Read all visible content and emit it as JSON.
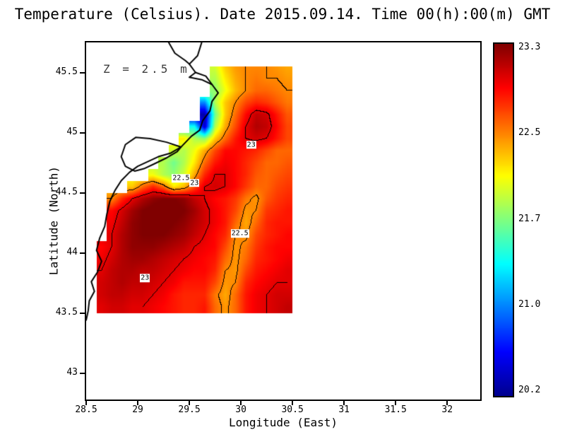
{
  "chart_data": {
    "type": "heatmap",
    "title": "Temperature (Celsius). Date 2015.09.14. Time 00(h):00(m) GMT",
    "annotation": "Z = 2.5 m",
    "xlabel": "Longitude (East)",
    "ylabel": "Latitude (North)",
    "x_ticks": [
      28.5,
      29,
      29.5,
      30,
      30.5,
      31,
      31.5,
      32
    ],
    "x_tick_labels": [
      "28.5",
      "29",
      "29.5",
      "30",
      "30.5",
      "31",
      "31.5",
      "32"
    ],
    "y_ticks": [
      43,
      43.5,
      44,
      44.5,
      45,
      45.5
    ],
    "y_tick_labels": [
      "43",
      "43.5",
      "44",
      "44.5",
      "45",
      "45.5"
    ],
    "xlim": [
      28.5,
      32.32
    ],
    "ylim": [
      42.78,
      45.75
    ],
    "grid_on": false,
    "colorbar": {
      "min": 20.2,
      "max": 23.3,
      "tick_labels": [
        "23.3",
        "22.5",
        "21.7",
        "21.0",
        "20.2"
      ],
      "colormap": [
        [
          0.0,
          "#00008F"
        ],
        [
          0.125,
          "#0000FF"
        ],
        [
          0.375,
          "#00FFFF"
        ],
        [
          0.625,
          "#FFFF00"
        ],
        [
          0.875,
          "#FF0000"
        ],
        [
          1.0,
          "#800000"
        ]
      ]
    },
    "contour_levels": [
      22.5,
      23
    ],
    "contour_labels": [
      {
        "text": "23",
        "lon": 30.1,
        "lat": 44.9
      },
      {
        "text": "22.5",
        "lon": 29.42,
        "lat": 44.62
      },
      {
        "text": "23",
        "lon": 29.55,
        "lat": 44.58
      },
      {
        "text": "22.5",
        "lon": 29.99,
        "lat": 44.16
      },
      {
        "text": "23",
        "lon": 29.07,
        "lat": 43.79
      }
    ],
    "grid": {
      "lon_start": 28.55,
      "lat_start": 43.55,
      "dlon": 0.1,
      "dlat": 0.1,
      "lat_max": 45.55,
      "values": [
        [
          null,
          23.0,
          23.05,
          23.05,
          23.0,
          23.0,
          22.95,
          22.9,
          22.85,
          22.8,
          22.8,
          22.85,
          22.6,
          22.45,
          22.6,
          22.85,
          22.95,
          23.0,
          23.05,
          23.1
        ],
        [
          null,
          23.05,
          23.1,
          23.1,
          23.05,
          23.05,
          23.0,
          22.95,
          22.85,
          22.8,
          22.8,
          22.8,
          22.55,
          22.4,
          22.6,
          22.85,
          22.95,
          23.0,
          23.05,
          23.05
        ],
        [
          null,
          23.05,
          23.1,
          23.15,
          23.1,
          23.1,
          23.05,
          23.0,
          22.95,
          22.85,
          22.85,
          22.85,
          22.7,
          22.45,
          22.5,
          22.8,
          22.9,
          22.95,
          23.0,
          23.0
        ],
        [
          null,
          23.0,
          23.1,
          23.15,
          23.15,
          23.1,
          23.1,
          23.05,
          23.0,
          22.95,
          22.9,
          22.9,
          22.8,
          22.5,
          22.45,
          22.7,
          22.85,
          22.9,
          22.95,
          23.0
        ],
        [
          null,
          22.95,
          23.05,
          23.15,
          23.2,
          23.2,
          23.15,
          23.1,
          23.05,
          23.0,
          22.95,
          22.9,
          22.85,
          22.6,
          22.45,
          22.6,
          22.8,
          22.85,
          22.9,
          22.95
        ],
        [
          null,
          22.9,
          23.0,
          23.15,
          23.25,
          23.25,
          23.25,
          23.2,
          23.15,
          23.1,
          23.0,
          22.95,
          22.9,
          22.7,
          22.45,
          22.55,
          22.75,
          22.85,
          22.9,
          22.9
        ],
        [
          null,
          null,
          23.0,
          23.15,
          23.25,
          23.3,
          23.3,
          23.3,
          23.25,
          23.2,
          23.1,
          23.0,
          22.9,
          22.8,
          22.5,
          22.45,
          22.7,
          22.8,
          22.85,
          22.9
        ],
        [
          null,
          null,
          22.95,
          23.1,
          23.25,
          23.3,
          23.35,
          23.35,
          23.3,
          23.25,
          23.15,
          23.05,
          22.95,
          22.85,
          22.6,
          22.4,
          22.6,
          22.8,
          22.85,
          22.85
        ],
        [
          null,
          null,
          22.9,
          23.05,
          23.2,
          23.3,
          23.35,
          23.35,
          23.35,
          23.3,
          23.2,
          23.05,
          22.95,
          22.85,
          22.7,
          22.45,
          22.5,
          22.75,
          22.8,
          22.85
        ],
        [
          null,
          null,
          22.5,
          22.8,
          23.0,
          23.15,
          23.25,
          23.3,
          23.3,
          23.25,
          23.1,
          23.0,
          22.9,
          22.85,
          22.75,
          22.55,
          22.45,
          22.65,
          22.75,
          22.8
        ],
        [
          null,
          null,
          null,
          null,
          22.3,
          22.6,
          22.8,
          22.6,
          22.2,
          22.35,
          22.7,
          23.0,
          23.05,
          23.0,
          22.9,
          22.75,
          22.6,
          22.6,
          22.7,
          22.75
        ],
        [
          null,
          null,
          null,
          null,
          null,
          null,
          22.1,
          21.9,
          21.8,
          22.0,
          22.4,
          22.8,
          23.0,
          23.0,
          22.9,
          22.8,
          22.65,
          22.6,
          22.65,
          22.7
        ],
        [
          null,
          null,
          null,
          null,
          null,
          null,
          null,
          21.9,
          21.7,
          21.9,
          22.2,
          22.6,
          22.85,
          22.95,
          22.9,
          22.8,
          22.7,
          22.6,
          22.6,
          22.65
        ],
        [
          null,
          null,
          null,
          null,
          null,
          null,
          null,
          null,
          22.0,
          21.9,
          22.1,
          22.4,
          22.7,
          22.9,
          22.9,
          22.85,
          22.8,
          22.7,
          22.6,
          22.6
        ],
        [
          null,
          null,
          null,
          null,
          null,
          null,
          null,
          null,
          null,
          22.2,
          21.9,
          21.8,
          22.3,
          22.6,
          22.85,
          23.0,
          23.05,
          23.0,
          22.85,
          22.7
        ],
        [
          null,
          null,
          null,
          null,
          null,
          null,
          null,
          null,
          null,
          null,
          21.4,
          20.4,
          21.9,
          22.4,
          22.7,
          23.0,
          23.15,
          23.1,
          22.9,
          22.7
        ],
        [
          null,
          null,
          null,
          null,
          null,
          null,
          null,
          null,
          null,
          null,
          null,
          20.3,
          21.7,
          22.3,
          22.6,
          22.9,
          23.1,
          23.05,
          22.85,
          22.65
        ],
        [
          null,
          null,
          null,
          null,
          null,
          null,
          null,
          null,
          null,
          null,
          null,
          21.0,
          21.9,
          22.3,
          22.5,
          22.7,
          22.8,
          22.75,
          22.65,
          22.55
        ],
        [
          null,
          null,
          null,
          null,
          null,
          null,
          null,
          null,
          null,
          null,
          null,
          null,
          21.8,
          22.1,
          22.35,
          22.5,
          22.6,
          22.6,
          22.55,
          22.5
        ],
        [
          null,
          null,
          null,
          null,
          null,
          null,
          null,
          null,
          null,
          null,
          null,
          null,
          21.9,
          22.2,
          22.4,
          22.5,
          22.55,
          22.5,
          22.5,
          22.45
        ],
        [
          null,
          null,
          null,
          null,
          null,
          null,
          null,
          null,
          null,
          null,
          null,
          null,
          22.0,
          22.3,
          22.45,
          22.5,
          22.5,
          22.5,
          22.45,
          22.4
        ]
      ]
    },
    "coastline": [
      [
        [
          29.62,
          45.75
        ],
        [
          29.58,
          45.64
        ],
        [
          29.5,
          45.57
        ],
        [
          29.56,
          45.5
        ],
        [
          29.5,
          45.46
        ],
        [
          29.62,
          45.44
        ],
        [
          29.72,
          45.4
        ],
        [
          29.78,
          45.33
        ],
        [
          29.72,
          45.26
        ],
        [
          29.7,
          45.18
        ],
        [
          29.63,
          45.1
        ],
        [
          29.6,
          45.02
        ],
        [
          29.52,
          44.97
        ],
        [
          29.42,
          44.88
        ],
        [
          29.32,
          44.83
        ],
        [
          29.2,
          44.8
        ],
        [
          29.1,
          44.76
        ],
        [
          29.0,
          44.72
        ],
        [
          28.92,
          44.67
        ],
        [
          28.84,
          44.6
        ],
        [
          28.78,
          44.52
        ],
        [
          28.73,
          44.43
        ],
        [
          28.7,
          44.32
        ],
        [
          28.68,
          44.22
        ],
        [
          28.63,
          44.12
        ],
        [
          28.6,
          44.02
        ],
        [
          28.65,
          43.93
        ],
        [
          28.61,
          43.84
        ],
        [
          28.55,
          43.76
        ],
        [
          28.58,
          43.68
        ],
        [
          28.53,
          43.6
        ],
        [
          28.52,
          43.52
        ],
        [
          28.5,
          43.44
        ]
      ],
      [
        [
          29.42,
          44.88
        ],
        [
          29.28,
          44.92
        ],
        [
          29.12,
          44.95
        ],
        [
          28.98,
          44.96
        ],
        [
          28.88,
          44.9
        ],
        [
          28.84,
          44.8
        ],
        [
          28.88,
          44.72
        ],
        [
          28.97,
          44.68
        ],
        [
          29.06,
          44.7
        ],
        [
          29.16,
          44.74
        ],
        [
          29.28,
          44.79
        ],
        [
          29.38,
          44.84
        ],
        [
          29.42,
          44.88
        ]
      ],
      [
        [
          29.3,
          45.75
        ],
        [
          29.36,
          45.66
        ],
        [
          29.46,
          45.6
        ],
        [
          29.5,
          45.57
        ]
      ],
      [
        [
          29.56,
          45.5
        ],
        [
          29.66,
          45.47
        ],
        [
          29.72,
          45.4
        ]
      ]
    ]
  }
}
